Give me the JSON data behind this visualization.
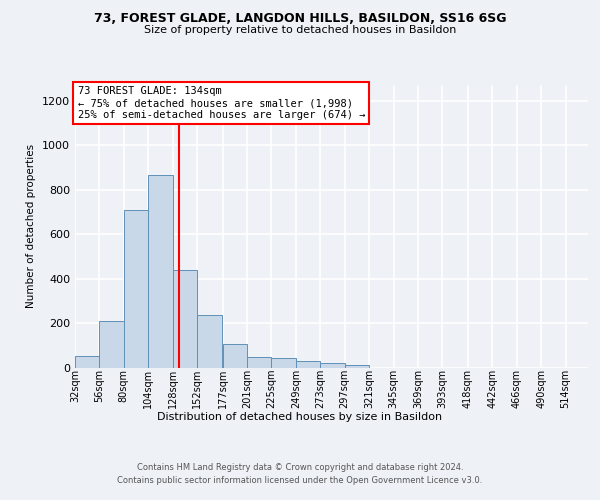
{
  "title1": "73, FOREST GLADE, LANGDON HILLS, BASILDON, SS16 6SG",
  "title2": "Size of property relative to detached houses in Basildon",
  "xlabel": "Distribution of detached houses by size in Basildon",
  "ylabel": "Number of detached properties",
  "footer1": "Contains HM Land Registry data © Crown copyright and database right 2024.",
  "footer2": "Contains public sector information licensed under the Open Government Licence v3.0.",
  "annotation_title": "73 FOREST GLADE: 134sqm",
  "annotation_line1": "← 75% of detached houses are smaller (1,998)",
  "annotation_line2": "25% of semi-detached houses are larger (674) →",
  "bar_color": "#c8d8e8",
  "bar_edge_color": "#6090b8",
  "ref_line_color": "red",
  "ref_line_x": 134,
  "categories": [
    "32sqm",
    "56sqm",
    "80sqm",
    "104sqm",
    "128sqm",
    "152sqm",
    "177sqm",
    "201sqm",
    "225sqm",
    "249sqm",
    "273sqm",
    "297sqm",
    "321sqm",
    "345sqm",
    "369sqm",
    "393sqm",
    "418sqm",
    "442sqm",
    "466sqm",
    "490sqm",
    "514sqm"
  ],
  "bin_edges": [
    32,
    56,
    80,
    104,
    128,
    152,
    177,
    201,
    225,
    249,
    273,
    297,
    321,
    345,
    369,
    393,
    418,
    442,
    466,
    490,
    514
  ],
  "values": [
    50,
    210,
    710,
    865,
    440,
    235,
    105,
    48,
    43,
    30,
    22,
    12,
    0,
    0,
    0,
    0,
    0,
    0,
    0,
    0,
    0
  ],
  "ylim": [
    0,
    1270
  ],
  "background_color": "#eef2f7",
  "plot_bg_color": "#eef2f7",
  "grid_color": "white",
  "annotation_box_color": "white",
  "annotation_box_edge": "red"
}
